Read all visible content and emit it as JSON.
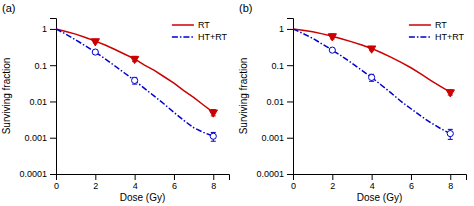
{
  "chart_data": [
    {
      "type": "line",
      "title": "(a)",
      "xlabel": "Dose (Gy)",
      "ylabel": "Surviving fraction",
      "log": "y",
      "legend": "upper right",
      "xlim": [
        0,
        8.8
      ],
      "xticks": [
        0,
        2,
        4,
        6,
        8
      ],
      "ylim": [
        0.0001,
        2.0
      ],
      "yticks": [
        0.0001,
        0.001,
        0.01,
        0.1,
        1
      ],
      "series": [
        {
          "name": "RT",
          "type": "line",
          "color": "#cc0000",
          "line_style": "solid",
          "x": [
            0,
            0.5,
            1,
            1.5,
            2,
            2.5,
            3,
            3.5,
            4,
            4.5,
            5,
            5.5,
            6,
            6.5,
            7,
            7.5,
            8
          ],
          "values": [
            1.0,
            0.85,
            0.72,
            0.58,
            0.46,
            0.36,
            0.27,
            0.2,
            0.15,
            0.1,
            0.072,
            0.048,
            0.032,
            0.02,
            0.013,
            0.008,
            0.005
          ]
        },
        {
          "name": "HT+RT",
          "type": "line",
          "color": "#0000cc",
          "line_style": "dashdot",
          "x": [
            0,
            0.5,
            1,
            1.5,
            2,
            2.5,
            3,
            3.5,
            4,
            4.5,
            5,
            5.5,
            6,
            6.5,
            7,
            7.5,
            8
          ],
          "values": [
            1.0,
            0.72,
            0.5,
            0.34,
            0.23,
            0.15,
            0.095,
            0.06,
            0.038,
            0.023,
            0.014,
            0.0085,
            0.005,
            0.003,
            0.0019,
            0.0014,
            0.0011
          ]
        },
        {
          "type": "scatter",
          "color": "#cc0000",
          "marker": "triangle-down",
          "x": [
            2,
            4,
            8
          ],
          "values": [
            0.46,
            0.15,
            0.005
          ],
          "errors": [
            0.05,
            0.025,
            0.001
          ]
        },
        {
          "type": "scatter",
          "color": "#0000cc",
          "marker": "circle-open",
          "x": [
            2,
            4,
            8
          ],
          "values": [
            0.23,
            0.038,
            0.0011
          ],
          "errors": [
            0.03,
            0.008,
            0.0003
          ]
        }
      ]
    },
    {
      "type": "line",
      "title": "(b)",
      "xlabel": "Dose (Gy)",
      "ylabel": "Surviving fraction",
      "log": "y",
      "legend": "upper right",
      "xlim": [
        0,
        8.8
      ],
      "xticks": [
        0,
        2,
        4,
        6,
        8
      ],
      "ylim": [
        0.0001,
        2.0
      ],
      "yticks": [
        0.0001,
        0.001,
        0.01,
        0.1,
        1
      ],
      "series": [
        {
          "name": "RT",
          "type": "line",
          "color": "#cc0000",
          "line_style": "solid",
          "x": [
            0,
            0.5,
            1,
            1.5,
            2,
            2.5,
            3,
            3.5,
            4,
            4.5,
            5,
            5.5,
            6,
            6.5,
            7,
            7.5,
            8
          ],
          "values": [
            1.0,
            0.92,
            0.83,
            0.73,
            0.63,
            0.53,
            0.44,
            0.36,
            0.29,
            0.22,
            0.165,
            0.12,
            0.085,
            0.058,
            0.038,
            0.026,
            0.018
          ]
        },
        {
          "name": "HT+RT",
          "type": "line",
          "color": "#0000cc",
          "line_style": "dashdot",
          "x": [
            0,
            0.5,
            1,
            1.5,
            2,
            2.5,
            3,
            3.5,
            4,
            4.5,
            5,
            5.5,
            6,
            6.5,
            7,
            7.5,
            8
          ],
          "values": [
            1.0,
            0.75,
            0.55,
            0.38,
            0.26,
            0.175,
            0.113,
            0.072,
            0.046,
            0.028,
            0.017,
            0.01,
            0.0063,
            0.004,
            0.0026,
            0.0018,
            0.0013
          ]
        },
        {
          "type": "scatter",
          "color": "#cc0000",
          "marker": "triangle-down",
          "x": [
            2,
            4,
            8
          ],
          "values": [
            0.63,
            0.29,
            0.018
          ],
          "errors": [
            0.1,
            0.04,
            0.003
          ]
        },
        {
          "type": "scatter",
          "color": "#0000cc",
          "marker": "circle-open",
          "x": [
            2,
            4,
            8
          ],
          "values": [
            0.26,
            0.046,
            0.0013
          ],
          "errors": [
            0.03,
            0.01,
            0.0004
          ]
        }
      ]
    }
  ]
}
